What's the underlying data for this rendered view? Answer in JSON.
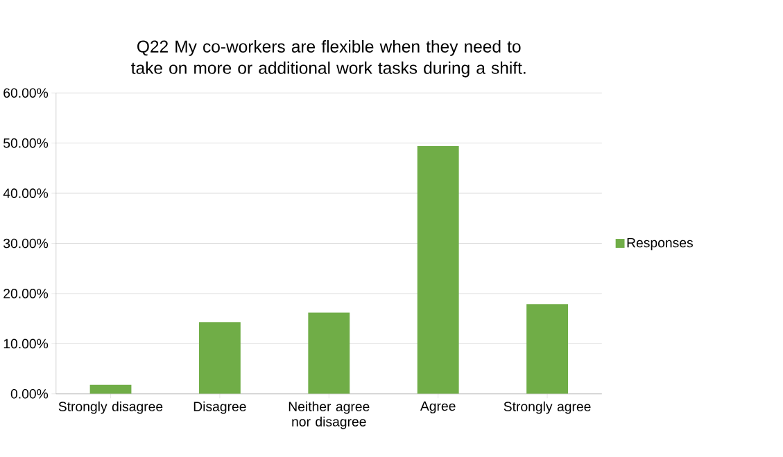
{
  "chart_data": {
    "type": "bar",
    "title": "Q22 My co-workers are flexible when they need to take on more or additional work tasks during a shift.",
    "categories": [
      "Strongly disagree",
      "Disagree",
      "Neither agree nor disagree",
      "Agree",
      "Strongly agree"
    ],
    "series": [
      {
        "name": "Responses",
        "color": "#70ad47",
        "values": [
          1.8,
          14.3,
          16.2,
          49.4,
          17.9
        ]
      }
    ],
    "ylim": [
      0,
      60
    ],
    "yticks": [
      {
        "value": 0,
        "label": "0.00%"
      },
      {
        "value": 10,
        "label": "10.00%"
      },
      {
        "value": 20,
        "label": "20.00%"
      },
      {
        "value": 30,
        "label": "30.00%"
      },
      {
        "value": 40,
        "label": "40.00%"
      },
      {
        "value": 50,
        "label": "50.00%"
      },
      {
        "value": 60,
        "label": "60.00%"
      }
    ],
    "grid": "y",
    "legend": "right"
  }
}
